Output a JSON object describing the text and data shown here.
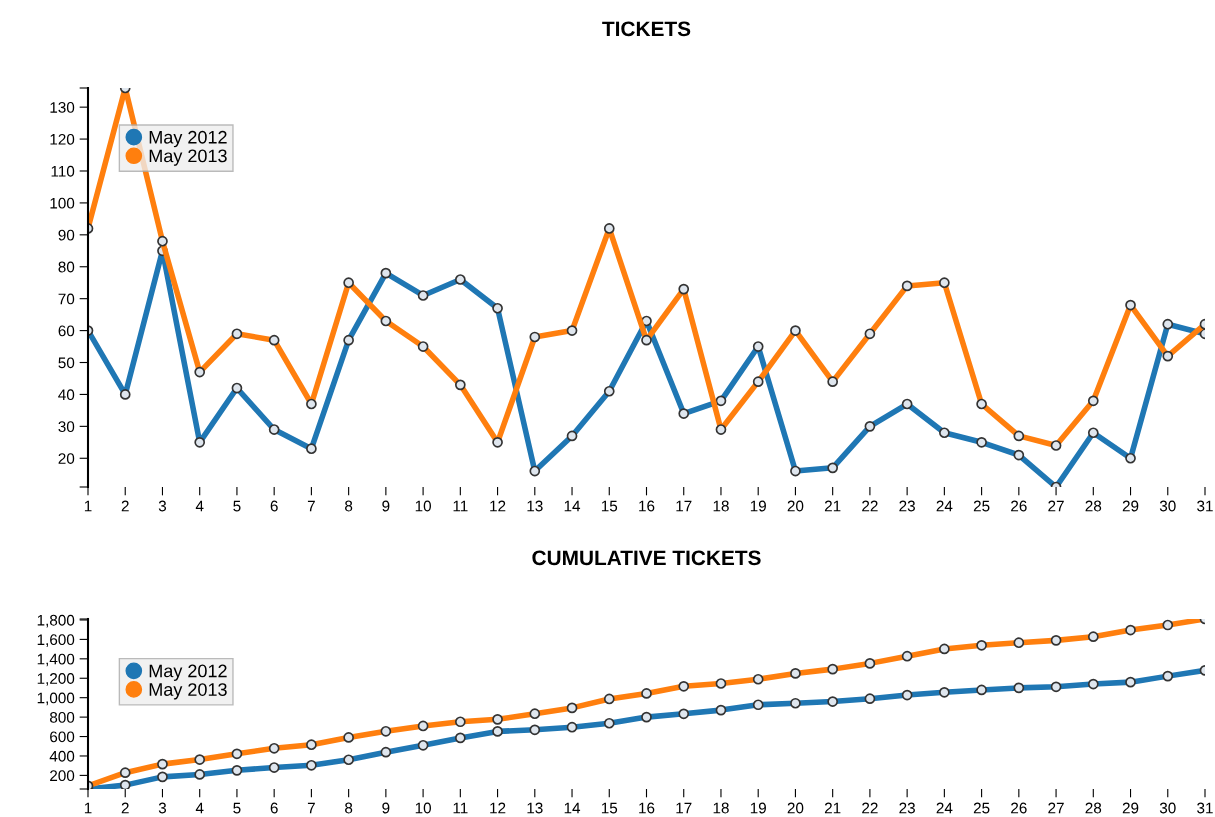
{
  "chart_data": [
    {
      "type": "line",
      "title": "TICKETS",
      "x": [
        1,
        2,
        3,
        4,
        5,
        6,
        7,
        8,
        9,
        10,
        11,
        12,
        13,
        14,
        15,
        16,
        17,
        18,
        19,
        20,
        21,
        22,
        23,
        24,
        25,
        26,
        27,
        28,
        29,
        30,
        31
      ],
      "series": [
        {
          "name": "May 2012",
          "color": "#1f77b4",
          "values": [
            60,
            40,
            85,
            25,
            42,
            29,
            23,
            57,
            78,
            71,
            76,
            67,
            16,
            27,
            41,
            63,
            34,
            38,
            55,
            16,
            17,
            30,
            37,
            28,
            25,
            21,
            11,
            28,
            20,
            62,
            59
          ]
        },
        {
          "name": "May 2013",
          "color": "#ff7f0e",
          "values": [
            92,
            136,
            88,
            47,
            59,
            57,
            37,
            75,
            63,
            55,
            43,
            25,
            58,
            60,
            92,
            57,
            73,
            29,
            44,
            60,
            44,
            59,
            74,
            75,
            37,
            27,
            24,
            38,
            68,
            52,
            62
          ]
        }
      ],
      "xlim": [
        1,
        31
      ],
      "xticks": [
        1,
        2,
        3,
        4,
        5,
        6,
        7,
        8,
        9,
        10,
        11,
        12,
        13,
        14,
        15,
        16,
        17,
        18,
        19,
        20,
        21,
        22,
        23,
        24,
        25,
        26,
        27,
        28,
        29,
        30,
        31
      ],
      "ylim": [
        11,
        136
      ],
      "yticks": [
        {
          "value": 11,
          "label": null
        },
        20,
        30,
        40,
        50,
        60,
        70,
        80,
        90,
        100,
        110,
        120,
        130,
        {
          "value": 136,
          "label": null
        }
      ],
      "grid": false,
      "legend": "top left",
      "marker": "circle",
      "line_style": "solid"
    },
    {
      "type": "line",
      "title": "CUMULATIVE TICKETS",
      "x": [
        1,
        2,
        3,
        4,
        5,
        6,
        7,
        8,
        9,
        10,
        11,
        12,
        13,
        14,
        15,
        16,
        17,
        18,
        19,
        20,
        21,
        22,
        23,
        24,
        25,
        26,
        27,
        28,
        29,
        30,
        31
      ],
      "series": [
        {
          "name": "May 2012",
          "color": "#1f77b4",
          "values": [
            60,
            100,
            185,
            210,
            252,
            281,
            304,
            361,
            439,
            510,
            586,
            653,
            669,
            696,
            737,
            800,
            834,
            872,
            927,
            943,
            960,
            990,
            1027,
            1055,
            1080,
            1101,
            1112,
            1140,
            1160,
            1222,
            1281
          ]
        },
        {
          "name": "May 2013",
          "color": "#ff7f0e",
          "values": [
            92,
            228,
            316,
            363,
            422,
            479,
            516,
            591,
            654,
            709,
            752,
            777,
            835,
            895,
            987,
            1044,
            1117,
            1146,
            1190,
            1250,
            1294,
            1353,
            1427,
            1502,
            1539,
            1566,
            1590,
            1628,
            1696,
            1748,
            1810
          ]
        }
      ],
      "xlim": [
        1,
        31
      ],
      "xticks": [
        1,
        2,
        3,
        4,
        5,
        6,
        7,
        8,
        9,
        10,
        11,
        12,
        13,
        14,
        15,
        16,
        17,
        18,
        19,
        20,
        21,
        22,
        23,
        24,
        25,
        26,
        27,
        28,
        29,
        30,
        31
      ],
      "ylim": [
        60,
        1810
      ],
      "yticks": [
        {
          "value": 60,
          "label": null
        },
        {
          "value": 200,
          "label": "200"
        },
        {
          "value": 400,
          "label": "400"
        },
        {
          "value": 600,
          "label": "600"
        },
        {
          "value": 800,
          "label": "800"
        },
        {
          "value": 1000,
          "label": "1,000"
        },
        {
          "value": 1200,
          "label": "1,200"
        },
        {
          "value": 1400,
          "label": "1,400"
        },
        {
          "value": 1600,
          "label": "1,600"
        },
        {
          "value": 1800,
          "label": "1,800"
        },
        {
          "value": 1810,
          "label": null
        }
      ],
      "grid": false,
      "legend": "top left",
      "marker": "circle",
      "line_style": "solid"
    }
  ]
}
